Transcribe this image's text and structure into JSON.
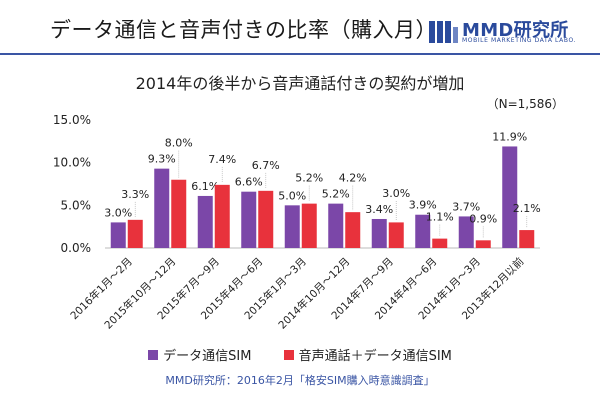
{
  "header": {
    "title": "データ通信と音声付きの比率（購入月）",
    "logo_name": "MMD研究所",
    "logo_tagline": "MOBILE MARKETING DATA LABO."
  },
  "subtitle": "2014年の後半から音声通話付きの契約が増加",
  "sample_note": "（N=1,586）",
  "footer": "MMD研究所：2016年2月「格安SIM購入時意識調査」",
  "colors": {
    "series_data": "#7b47a8",
    "series_voice": "#e8323c",
    "brand": "#3a55a4"
  },
  "chart_data": {
    "type": "bar",
    "categories": [
      "2016年1月～2月",
      "2015年10月～12月",
      "2015年7月～9月",
      "2015年4月～6月",
      "2015年1月～3月",
      "2014年10月～12月",
      "2014年7月～9月",
      "2014年4月～6月",
      "2014年1月～3月",
      "2013年12月以前"
    ],
    "series": [
      {
        "name": "データ通信SIM",
        "values": [
          3.0,
          9.3,
          6.1,
          6.6,
          5.0,
          5.2,
          3.4,
          3.9,
          3.7,
          11.9
        ],
        "labels": [
          "3.0%",
          "9.3%",
          "6.1%",
          "6.6%",
          "5.0%",
          "5.2%",
          "3.4%",
          "3.9%",
          "3.7%",
          "11.9%"
        ]
      },
      {
        "name": "音声通話＋データ通信SIM",
        "values": [
          3.3,
          8.0,
          7.4,
          6.7,
          5.2,
          4.2,
          3.0,
          1.1,
          0.9,
          2.1
        ],
        "labels": [
          "3.3%",
          "8.0%",
          "7.4%",
          "6.7%",
          "5.2%",
          "4.2%",
          "3.0%",
          "1.1%",
          "0.9%",
          "2.1%"
        ]
      }
    ],
    "yticks": [
      "0.0%",
      "5.0%",
      "10.0%",
      "15.0%"
    ],
    "ytick_values": [
      0,
      5,
      10,
      15
    ],
    "ylim": [
      0,
      15
    ],
    "legend_position": "bottom",
    "grid": false
  }
}
